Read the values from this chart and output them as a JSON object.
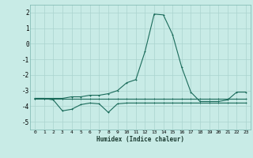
{
  "x": [
    0,
    1,
    2,
    3,
    4,
    5,
    6,
    7,
    8,
    9,
    10,
    11,
    12,
    13,
    14,
    15,
    16,
    17,
    18,
    19,
    20,
    21,
    22,
    23
  ],
  "line1": [
    -3.5,
    -3.5,
    -3.5,
    -3.5,
    -3.4,
    -3.4,
    -3.3,
    -3.3,
    -3.2,
    -3.0,
    -2.5,
    -2.3,
    -0.5,
    1.9,
    1.85,
    0.6,
    -1.5,
    -3.1,
    -3.7,
    -3.7,
    -3.7,
    -3.6,
    -3.1,
    -3.1
  ],
  "line2": [
    -3.5,
    -3.5,
    -3.6,
    -4.3,
    -4.2,
    -3.9,
    -3.8,
    -3.85,
    -4.4,
    -3.85,
    -3.8,
    -3.8,
    -3.8,
    -3.8,
    -3.8,
    -3.8,
    -3.8,
    -3.8,
    -3.8,
    -3.8,
    -3.8,
    -3.8,
    -3.8,
    -3.8
  ],
  "line3": [
    -3.5,
    -3.5,
    -3.5,
    -3.5,
    -3.5,
    -3.5,
    -3.5,
    -3.5,
    -3.5,
    -3.5,
    -3.5,
    -3.5,
    -3.5,
    -3.5,
    -3.5,
    -3.5,
    -3.5,
    -3.5,
    -3.5,
    -3.5,
    -3.5,
    -3.5,
    -3.5,
    -3.5
  ],
  "color": "#1a6b5a",
  "bg_color": "#c8ebe6",
  "grid_color": "#aad4ce",
  "xlabel": "Humidex (Indice chaleur)",
  "ylim": [
    -5.5,
    2.5
  ],
  "xlim": [
    -0.5,
    23.5
  ],
  "yticks": [
    -5,
    -4,
    -3,
    -2,
    -1,
    0,
    1,
    2
  ],
  "xticks": [
    0,
    1,
    2,
    3,
    4,
    5,
    6,
    7,
    8,
    9,
    10,
    11,
    12,
    13,
    14,
    15,
    16,
    17,
    18,
    19,
    20,
    21,
    22,
    23
  ]
}
